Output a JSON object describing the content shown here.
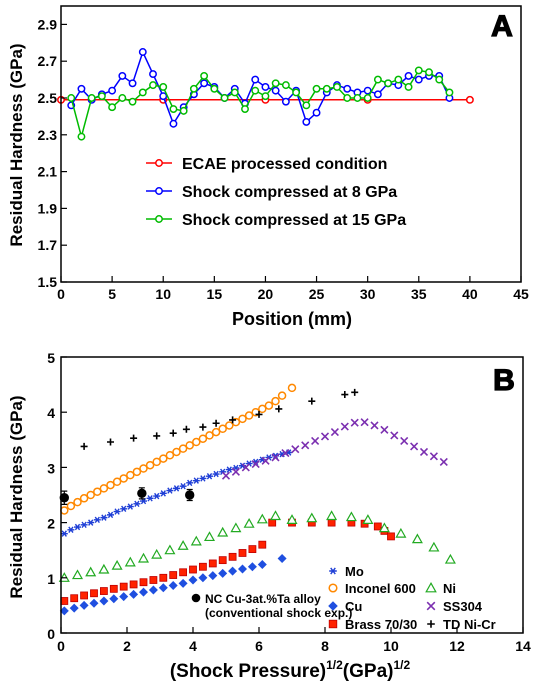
{
  "chart_data": [
    {
      "panel": "A",
      "type": "line",
      "panel_label": "A",
      "xlabel": "Position (mm)",
      "ylabel": "Residual Hardness (GPa)",
      "xlim": [
        0,
        45
      ],
      "ylim": [
        1.5,
        3.0
      ],
      "xticks": [
        "0",
        "5",
        "10",
        "15",
        "20",
        "25",
        "30",
        "35",
        "40",
        "45"
      ],
      "yticks": [
        "1.5",
        "1.7",
        "1.9",
        "2.1",
        "2.3",
        "2.5",
        "2.7",
        "2.9"
      ],
      "legend_position": "center",
      "series": [
        {
          "name": "ECAE processed condition",
          "color": "#ff0000",
          "marker": "circle-open",
          "x": [
            0,
            10,
            20,
            30,
            40
          ],
          "y": [
            2.49,
            2.49,
            2.49,
            2.49,
            2.49
          ]
        },
        {
          "name": "Shock compressed at 8 GPa",
          "color": "#0000ff",
          "marker": "circle-open",
          "x": [
            1,
            2,
            3,
            4,
            5,
            6,
            7,
            8,
            9,
            10,
            11,
            12,
            13,
            14,
            15,
            16,
            17,
            18,
            19,
            20,
            21,
            22,
            23,
            24,
            25,
            26,
            27,
            28,
            29,
            30,
            31,
            32,
            33,
            34,
            35,
            36,
            37,
            38
          ],
          "y": [
            2.46,
            2.55,
            2.49,
            2.52,
            2.54,
            2.62,
            2.58,
            2.75,
            2.63,
            2.51,
            2.36,
            2.45,
            2.52,
            2.58,
            2.56,
            2.5,
            2.55,
            2.47,
            2.6,
            2.56,
            2.54,
            2.48,
            2.54,
            2.37,
            2.42,
            2.53,
            2.57,
            2.55,
            2.53,
            2.54,
            2.52,
            2.58,
            2.57,
            2.62,
            2.6,
            2.62,
            2.62,
            2.5
          ]
        },
        {
          "name": "Shock compressed at 15 GPa",
          "color": "#00bb00",
          "marker": "circle-open",
          "x": [
            1,
            2,
            3,
            4,
            5,
            6,
            7,
            8,
            9,
            10,
            11,
            12,
            13,
            14,
            15,
            16,
            17,
            18,
            19,
            20,
            21,
            22,
            23,
            24,
            25,
            26,
            27,
            28,
            29,
            30,
            31,
            32,
            33,
            34,
            35,
            36,
            37,
            38
          ],
          "y": [
            2.5,
            2.29,
            2.5,
            2.51,
            2.45,
            2.5,
            2.48,
            2.53,
            2.57,
            2.56,
            2.44,
            2.43,
            2.55,
            2.62,
            2.55,
            2.5,
            2.53,
            2.44,
            2.54,
            2.51,
            2.58,
            2.57,
            2.53,
            2.46,
            2.55,
            2.55,
            2.56,
            2.5,
            2.5,
            2.5,
            2.6,
            2.58,
            2.6,
            2.56,
            2.65,
            2.64,
            2.6,
            2.53
          ]
        }
      ]
    },
    {
      "panel": "B",
      "type": "scatter",
      "panel_label": "B",
      "xlabel_main": "(Shock Pressure)",
      "xlabel_sup1": "1/2",
      "xlabel_mid": "(GPa)",
      "xlabel_sup2": "1/2",
      "ylabel": "Residual Hardness (GPa)",
      "xlim": [
        0,
        14
      ],
      "ylim": [
        0,
        5
      ],
      "xticks": [
        "0",
        "2",
        "4",
        "6",
        "8",
        "10",
        "12",
        "14"
      ],
      "yticks": [
        "0",
        "1",
        "2",
        "3",
        "4",
        "5"
      ],
      "legend_position": "bottom-right",
      "series": [
        {
          "name": "Mo",
          "color": "#1f3fd6",
          "marker": "asterisk",
          "x": [
            0.1,
            0.3,
            0.5,
            0.7,
            0.9,
            1.1,
            1.3,
            1.5,
            1.7,
            1.9,
            2.1,
            2.3,
            2.5,
            2.7,
            2.9,
            3.1,
            3.3,
            3.5,
            3.7,
            3.9,
            4.1,
            4.3,
            4.5,
            4.7,
            4.9,
            5.1,
            5.3,
            5.5,
            5.7,
            5.9,
            6.1,
            6.3,
            6.5,
            6.7,
            6.9
          ],
          "y": [
            1.8,
            1.87,
            1.92,
            1.96,
            2.0,
            2.05,
            2.09,
            2.14,
            2.2,
            2.25,
            2.29,
            2.34,
            2.39,
            2.44,
            2.48,
            2.53,
            2.58,
            2.62,
            2.66,
            2.72,
            2.76,
            2.8,
            2.84,
            2.88,
            2.92,
            2.96,
            2.99,
            3.03,
            3.07,
            3.1,
            3.14,
            3.18,
            3.21,
            3.24,
            3.27
          ]
        },
        {
          "name": "Inconel 600",
          "color": "#ff8800",
          "marker": "circle-open",
          "x": [
            0.1,
            0.3,
            0.5,
            0.7,
            0.9,
            1.1,
            1.3,
            1.5,
            1.7,
            1.9,
            2.1,
            2.3,
            2.5,
            2.7,
            2.9,
            3.1,
            3.3,
            3.5,
            3.7,
            3.9,
            4.1,
            4.3,
            4.5,
            4.7,
            4.9,
            5.1,
            5.3,
            5.5,
            5.7,
            5.9,
            6.1,
            6.3,
            6.5,
            6.7,
            7.0
          ],
          "y": [
            2.22,
            2.3,
            2.37,
            2.44,
            2.5,
            2.56,
            2.62,
            2.68,
            2.74,
            2.8,
            2.86,
            2.92,
            2.98,
            3.04,
            3.1,
            3.16,
            3.22,
            3.28,
            3.34,
            3.4,
            3.46,
            3.52,
            3.58,
            3.64,
            3.7,
            3.76,
            3.82,
            3.88,
            3.94,
            4.0,
            4.06,
            4.12,
            4.2,
            4.3,
            4.44
          ]
        },
        {
          "name": "Cu",
          "color": "#1f4fe0",
          "marker": "diamond",
          "x": [
            0.1,
            0.4,
            0.7,
            1.0,
            1.3,
            1.6,
            1.9,
            2.2,
            2.5,
            2.8,
            3.1,
            3.4,
            3.7,
            4.0,
            4.3,
            4.6,
            4.9,
            5.2,
            5.5,
            5.8,
            6.1,
            6.7
          ],
          "y": [
            0.4,
            0.45,
            0.5,
            0.54,
            0.58,
            0.62,
            0.66,
            0.7,
            0.74,
            0.78,
            0.82,
            0.86,
            0.9,
            0.96,
            1.0,
            1.04,
            1.08,
            1.12,
            1.16,
            1.2,
            1.24,
            1.35
          ]
        },
        {
          "name": "Brass 70/30",
          "color": "#ff2200",
          "marker": "square",
          "x": [
            0.1,
            0.4,
            0.7,
            1.0,
            1.3,
            1.6,
            1.9,
            2.2,
            2.5,
            2.8,
            3.1,
            3.4,
            3.7,
            4.0,
            4.3,
            4.6,
            4.9,
            5.2,
            5.5,
            5.8,
            6.1,
            6.4,
            7.0,
            7.6,
            8.2,
            8.8,
            9.2,
            9.6,
            9.8,
            10.0
          ],
          "y": [
            0.58,
            0.63,
            0.68,
            0.72,
            0.76,
            0.8,
            0.84,
            0.88,
            0.92,
            0.96,
            1.0,
            1.05,
            1.1,
            1.15,
            1.2,
            1.26,
            1.32,
            1.38,
            1.45,
            1.52,
            1.6,
            2.0,
            2.0,
            2.0,
            2.0,
            2.0,
            1.98,
            1.93,
            1.85,
            1.75
          ]
        },
        {
          "name": "Ni",
          "color": "#22aa22",
          "marker": "triangle-open",
          "x": [
            0.1,
            0.5,
            0.9,
            1.3,
            1.7,
            2.1,
            2.5,
            2.9,
            3.3,
            3.7,
            4.1,
            4.5,
            4.9,
            5.3,
            5.7,
            6.1,
            6.5,
            7.0,
            7.6,
            8.2,
            8.8,
            9.3,
            9.8,
            10.3,
            10.8,
            11.3,
            11.8
          ],
          "y": [
            1.0,
            1.05,
            1.1,
            1.15,
            1.22,
            1.28,
            1.35,
            1.42,
            1.5,
            1.58,
            1.66,
            1.74,
            1.82,
            1.9,
            1.98,
            2.06,
            2.12,
            2.05,
            2.08,
            2.12,
            2.1,
            2.05,
            1.9,
            1.8,
            1.7,
            1.55,
            1.33
          ]
        },
        {
          "name": "SS304",
          "color": "#7b2fb0",
          "marker": "x",
          "x": [
            5.0,
            5.3,
            5.6,
            5.9,
            6.2,
            6.5,
            6.8,
            7.1,
            7.4,
            7.7,
            8.0,
            8.3,
            8.6,
            8.9,
            9.2,
            9.5,
            9.8,
            10.1,
            10.4,
            10.7,
            11.0,
            11.3,
            11.6
          ],
          "y": [
            2.85,
            2.92,
            3.0,
            3.06,
            3.12,
            3.18,
            3.26,
            3.33,
            3.4,
            3.48,
            3.56,
            3.64,
            3.74,
            3.81,
            3.82,
            3.76,
            3.68,
            3.58,
            3.48,
            3.38,
            3.28,
            3.2,
            3.1
          ]
        },
        {
          "name": "TD Ni-Cr",
          "color": "#000000",
          "marker": "plus",
          "x": [
            0.7,
            1.5,
            2.2,
            2.9,
            3.4,
            3.8,
            4.3,
            4.7,
            5.2,
            6.0,
            6.6,
            7.6,
            8.6,
            8.9
          ],
          "y": [
            3.38,
            3.46,
            3.53,
            3.57,
            3.62,
            3.69,
            3.73,
            3.8,
            3.86,
            3.96,
            4.06,
            4.2,
            4.32,
            4.36
          ]
        },
        {
          "name": "NC Cu-3at.%Ta alloy (conventional shock exp.)",
          "legend_lines": [
            "NC Cu-3at.%Ta alloy",
            "(conventional shock exp.)"
          ],
          "color": "#000000",
          "marker": "filled-circle",
          "x": [
            0.1,
            2.45,
            3.9
          ],
          "y": [
            2.45,
            2.53,
            2.5
          ],
          "yerr": [
            0.12,
            0.1,
            0.1
          ]
        }
      ]
    }
  ]
}
